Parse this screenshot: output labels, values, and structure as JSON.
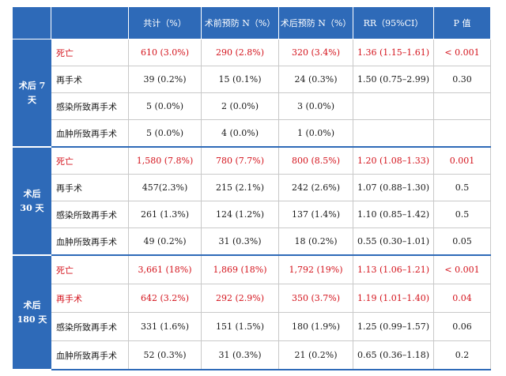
{
  "header": {
    "corner": "",
    "event": "",
    "total": "共计（%）",
    "pre": "术前预防 N（%）",
    "post": "术后预防 N（%）",
    "rr": "RR（95%CI）",
    "p": "P 值"
  },
  "groups": [
    {
      "label_line1": "术后 7",
      "label_line2": "天",
      "rows": [
        {
          "event": "死亡",
          "total": "610 (3.0%)",
          "pre": "290 (2.8%)",
          "post": "320 (3.4%)",
          "rr": "1.36 (1.15–1.61)",
          "p": "< 0.001",
          "highlight": true
        },
        {
          "event": "再手术",
          "total": "39 (0.2%)",
          "pre": "15 (0.1%)",
          "post": "24 (0.3%)",
          "rr": "1.50 (0.75–2.99)",
          "p": "0.30",
          "highlight": false
        },
        {
          "event": "感染所致再手术",
          "total": "5 (0.0%)",
          "pre": "2 (0.0%)",
          "post": "3 (0.0%)",
          "rr": "",
          "p": "",
          "highlight": false
        },
        {
          "event": "血肿所致再手术",
          "total": "5 (0.0%)",
          "pre": "4 (0.0%)",
          "post": "1 (0.0%)",
          "rr": "",
          "p": "",
          "highlight": false
        }
      ]
    },
    {
      "label_line1": "术后",
      "label_line2": "30 天",
      "rows": [
        {
          "event": "死亡",
          "total": "1,580 (7.8%)",
          "pre": "780 (7.7%)",
          "post": "800 (8.5%)",
          "rr": "1.20 (1.08–1.33)",
          "p": "0.001",
          "highlight": true
        },
        {
          "event": "再手术",
          "total": "457(2.3%)",
          "pre": "215 (2.1%)",
          "post": "242 (2.6%)",
          "rr": "1.07 (0.88–1.30)",
          "p": "0.5",
          "highlight": false
        },
        {
          "event": "感染所致再手术",
          "total": "261 (1.3%)",
          "pre": "124 (1.2%)",
          "post": "137 (1.4%)",
          "rr": "1.10 (0.85–1.42)",
          "p": "0.5",
          "highlight": false
        },
        {
          "event": "血肿所致再手术",
          "total": "49 (0.2%)",
          "pre": "31 (0.3%)",
          "post": "18 (0.2%)",
          "rr": "0.55 (0.30–1.01)",
          "p": "0.05",
          "highlight": false
        }
      ]
    },
    {
      "label_line1": "术后",
      "label_line2": "180 天",
      "rows": [
        {
          "event": "死亡",
          "total": "3,661 (18%)",
          "pre": "1,869 (18%)",
          "post": "1,792 (19%)",
          "rr": "1.13 (1.06–1.21)",
          "p": "< 0.001",
          "highlight": true
        },
        {
          "event": "再手术",
          "total": "642 (3.2%)",
          "pre": "292 (2.9%)",
          "post": "350 (3.7%)",
          "rr": "1.19 (1.01–1.40)",
          "p": "0.04",
          "highlight": true
        },
        {
          "event": "感染所致再手术",
          "total": "331 (1.6%)",
          "pre": "151 (1.5%)",
          "post": "180 (1.9%)",
          "rr": "1.25 (0.99–1.57)",
          "p": "0.06",
          "highlight": false
        },
        {
          "event": "血肿所致再手术",
          "total": "52 (0.3%)",
          "pre": "31 (0.3%)",
          "post": "21 (0.2%)",
          "rr": "0.65 (0.36–1.18)",
          "p": "0.2",
          "highlight": false
        }
      ]
    }
  ],
  "colors": {
    "header_bg": "#2e6ab8",
    "highlight_text": "#d4131c"
  }
}
